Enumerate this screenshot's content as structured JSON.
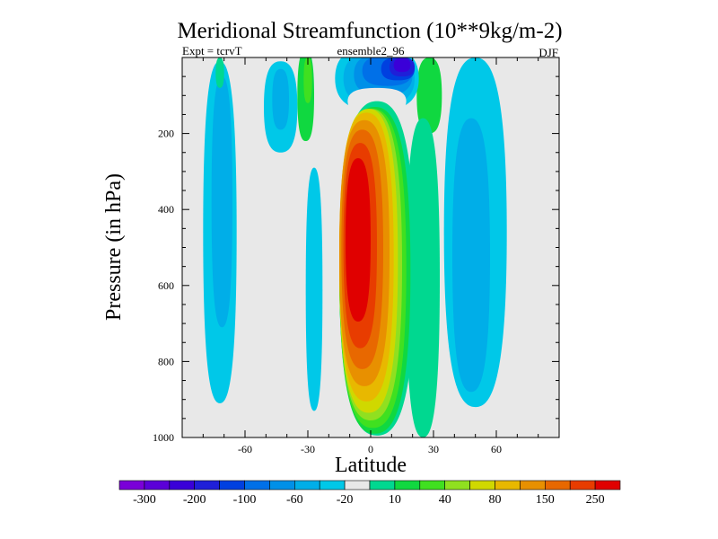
{
  "chart_data": {
    "type": "contour",
    "title": "Meridional Streamfunction (10**9kg/m-2)",
    "subtitle_left": "Expt = tcrvT",
    "subtitle_center": "ensemble2_96",
    "subtitle_right": "DJF",
    "xlabel": "Latitude",
    "ylabel": "Pressure (in hPa)",
    "xlim": [
      -90,
      90
    ],
    "ylim": [
      1000,
      0
    ],
    "x_ticks": [
      -60,
      -30,
      0,
      30,
      60
    ],
    "x_tick_labels": [
      "-60",
      "-30",
      "0",
      "30",
      "60"
    ],
    "y_ticks": [
      200,
      400,
      600,
      800,
      1000
    ],
    "y_tick_labels": [
      "200",
      "400",
      "600",
      "800",
      "1000"
    ],
    "background_color": "#e8e8e8",
    "colorbar": {
      "colors": [
        "#7a00d8",
        "#5b00d8",
        "#3a00d8",
        "#1f1fd8",
        "#0040e0",
        "#0070e8",
        "#0090e8",
        "#00aee8",
        "#00c8e8",
        "#e8e8e8",
        "#00d890",
        "#10d840",
        "#40e020",
        "#90e020",
        "#d0d800",
        "#e8b800",
        "#e89000",
        "#e86800",
        "#e83c00",
        "#e00000"
      ],
      "labels": [
        "-300",
        "-200",
        "-100",
        "-60",
        "-20",
        "10",
        "40",
        "80",
        "150",
        "250"
      ]
    },
    "regions": [
      {
        "name": "main-positive-cell",
        "lat_range": [
          -15,
          25
        ],
        "p_range": [
          90,
          990
        ],
        "peak_value": 250,
        "peak_lat": -5,
        "peak_p": 500
      },
      {
        "name": "upper-negative-cell",
        "lat_range": [
          -12,
          22
        ],
        "p_range": [
          20,
          150
        ],
        "peak_value": -200,
        "peak_lat": 12,
        "peak_p": 50
      },
      {
        "name": "sh-negative-cell",
        "lat_range": [
          -80,
          -65
        ],
        "p_range": [
          20,
          910
        ],
        "peak_value": -20
      },
      {
        "name": "nh-negative-cell",
        "lat_range": [
          35,
          65
        ],
        "p_range": [
          20,
          900
        ],
        "peak_value": -20
      },
      {
        "name": "upper-sh-negative",
        "lat_range": [
          -50,
          -35
        ],
        "p_range": [
          20,
          260
        ],
        "peak_value": -20
      },
      {
        "name": "mid-negative-strip",
        "lat_range": [
          -30,
          -23
        ],
        "p_range": [
          290,
          930
        ],
        "peak_value": -20
      }
    ]
  }
}
